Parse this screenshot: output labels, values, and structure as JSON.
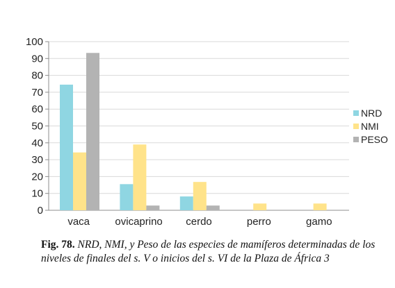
{
  "chart_data": {
    "type": "bar",
    "categories": [
      "vaca",
      "ovicaprino",
      "cerdo",
      "perro",
      "gamo"
    ],
    "series": [
      {
        "name": "NRD",
        "color": "#8fd6e2",
        "values": [
          74.5,
          15.5,
          8.2,
          0,
          0
        ]
      },
      {
        "name": "NMI",
        "color": "#ffe38a",
        "values": [
          34.3,
          39.0,
          16.8,
          4.0,
          4.0
        ]
      },
      {
        "name": "PESO",
        "color": "#b3b3b3",
        "values": [
          93.3,
          2.8,
          2.8,
          0,
          0
        ]
      }
    ],
    "ylim": [
      0,
      100
    ],
    "yticks": [
      0,
      10,
      20,
      30,
      40,
      50,
      60,
      70,
      80,
      90,
      100
    ],
    "grid": true,
    "legend": "right",
    "title": "",
    "xlabel": "",
    "ylabel": ""
  },
  "caption": {
    "label": "Fig. 78.",
    "text": "NRD, NMI, y Peso de las especies de mamíferos determinadas de los niveles de finales del s. V o inicios del s. VI de la Plaza de África 3"
  }
}
